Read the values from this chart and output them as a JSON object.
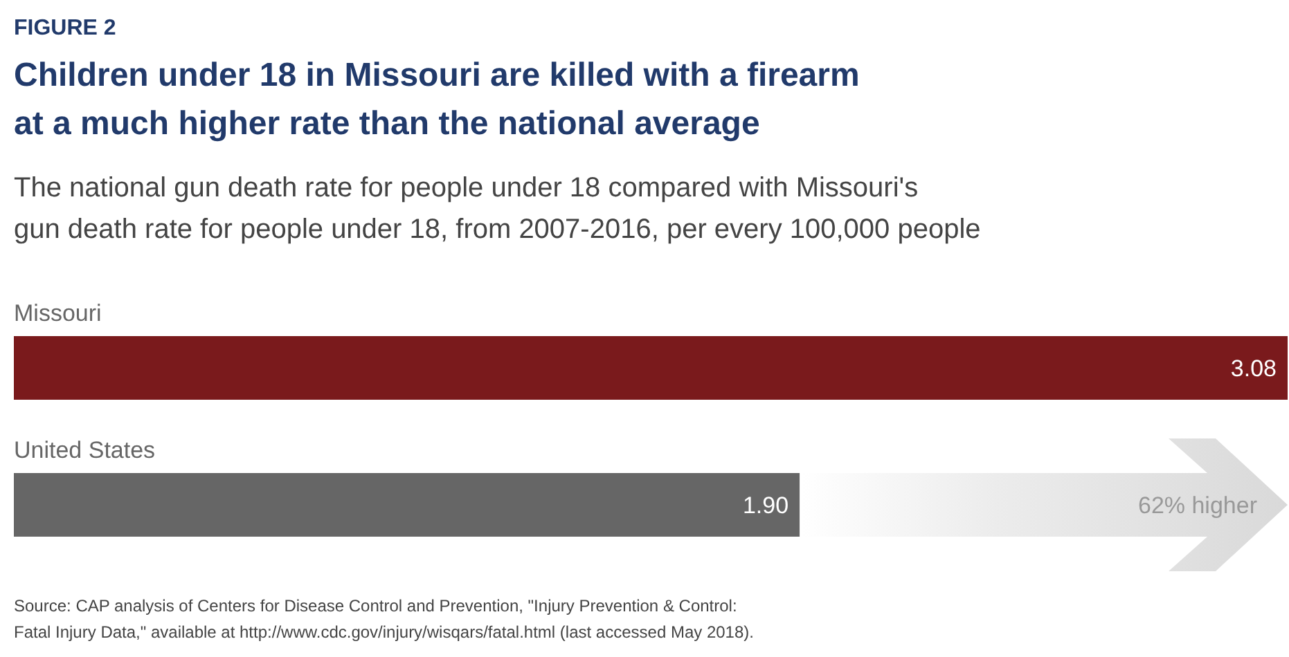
{
  "chart_data": {
    "type": "bar",
    "orientation": "horizontal",
    "title": "Children under 18 in Missouri are killed with a firearm\nat a much higher rate than the national average",
    "subtitle": "The national gun death rate for people under 18 compared with Missouri's\ngun death rate for people under 18, from 2007-2016, per every 100,000 people",
    "categories": [
      "Missouri",
      "United States"
    ],
    "values": [
      3.08,
      1.9
    ],
    "colors": [
      "#7a1a1c",
      "#666666"
    ],
    "xlim": [
      0,
      3.08
    ],
    "value_labels": [
      "3.08",
      "1.90"
    ],
    "annotations": [
      "FIGURE 2",
      "62% higher",
      "Source: CAP analysis of Centers for Disease Control and Prevention, \"Injury Prevention & Control:\nFatal Injury Data,\" available at http://www.cdc.gov/injury/wisqars/fatal.html (last accessed May 2018)."
    ]
  }
}
